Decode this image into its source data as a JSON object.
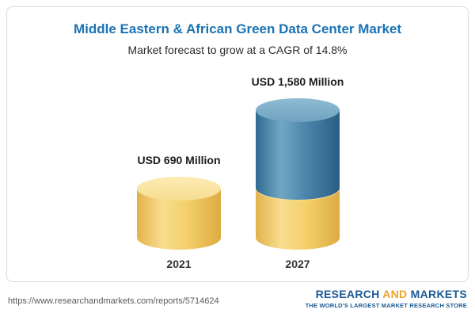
{
  "chart_data": {
    "type": "bar",
    "subtype": "stacked-cylinder",
    "title": "Middle Eastern & African Green Data Center Market",
    "subtitle": "Market forecast to grow at a CAGR of 14.8%",
    "categories": [
      "2021",
      "2027"
    ],
    "values": [
      690,
      1580
    ],
    "value_labels": [
      "USD 690 Million",
      "USD 1,580 Million"
    ],
    "unit": "USD Million",
    "ylim": [
      0,
      1580
    ],
    "legend": "none",
    "grid": "off",
    "colors": {
      "title": "#1a73b5",
      "bar_2021": "#f4d06a",
      "bar_2027_base": "#f4d06a",
      "bar_2027_growth": "#417ea4"
    }
  },
  "footer": {
    "url": "https://www.researchandmarkets.com/reports/5714624",
    "logo": {
      "word1": "RESEARCH",
      "word2": "AND",
      "word3": "MARKETS",
      "tagline": "THE WORLD'S LARGEST MARKET RESEARCH STORE"
    }
  }
}
